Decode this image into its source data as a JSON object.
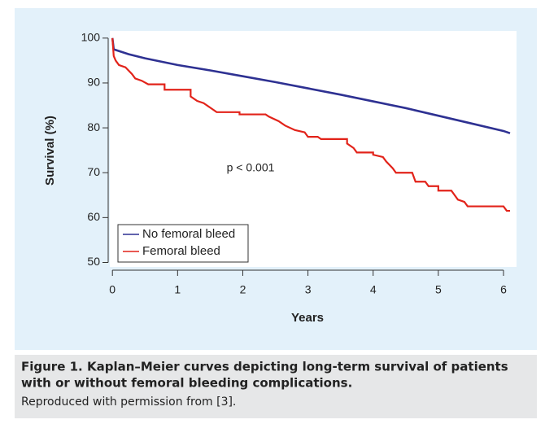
{
  "chart_data": {
    "type": "line",
    "ylabel": "Survival (%)",
    "xlabel": "Years",
    "annotation": "p < 0.001",
    "xlim": [
      -0.04,
      6.2
    ],
    "xticks": [
      0,
      1,
      2,
      3,
      4,
      5,
      6
    ],
    "ylim": [
      49,
      101.6
    ],
    "yticks": [
      50,
      60,
      70,
      80,
      90,
      100
    ],
    "legend": "bottom-left",
    "series": [
      {
        "name": "No femoral bleed",
        "color": "#2e3192",
        "x": [
          0,
          0.02,
          0.25,
          0.5,
          1,
          1.5,
          2,
          2.5,
          3,
          3.5,
          4,
          4.5,
          5,
          5.5,
          6,
          6.1
        ],
        "values": [
          100,
          97.5,
          96.4,
          95.5,
          94,
          92.8,
          91.5,
          90.2,
          88.8,
          87.4,
          85.9,
          84.4,
          82.7,
          81,
          79.3,
          78.8
        ]
      },
      {
        "name": "Femoral bleed",
        "color": "#e2231a",
        "x": [
          0,
          0.02,
          0.05,
          0.1,
          0.2,
          0.3,
          0.35,
          0.45,
          0.55,
          0.8,
          0.8,
          1.2,
          1.2,
          1.3,
          1.4,
          1.5,
          1.6,
          1.95,
          1.95,
          2.35,
          2.4,
          2.55,
          2.65,
          2.8,
          2.95,
          3.0,
          3.15,
          3.2,
          3.6,
          3.6,
          3.7,
          3.75,
          4.0,
          4.0,
          4.15,
          4.2,
          4.3,
          4.35,
          4.6,
          4.65,
          4.8,
          4.85,
          5.0,
          5.0,
          5.2,
          5.25,
          5.3,
          5.4,
          5.45,
          6.0,
          6.05,
          6.1
        ],
        "values": [
          100,
          96,
          95,
          94,
          93.5,
          92,
          91,
          90.5,
          89.7,
          89.7,
          88.5,
          88.5,
          87,
          86,
          85.5,
          84.5,
          83.5,
          83.5,
          83,
          83,
          82.5,
          81.5,
          80.5,
          79.5,
          79,
          78,
          78,
          77.5,
          77.5,
          76.5,
          75.5,
          74.5,
          74.5,
          74,
          73.5,
          72.5,
          71,
          70,
          70,
          68,
          68,
          67,
          67,
          66,
          66,
          65,
          64,
          63.5,
          62.5,
          62.5,
          61.5,
          61.5
        ]
      }
    ],
    "caption_title": [
      "Figure 1. Kaplan–Meier curves depicting long-term survival of patients",
      "with or without femoral bleeding complications."
    ],
    "caption_note": "Reproduced with permission from [3]."
  }
}
